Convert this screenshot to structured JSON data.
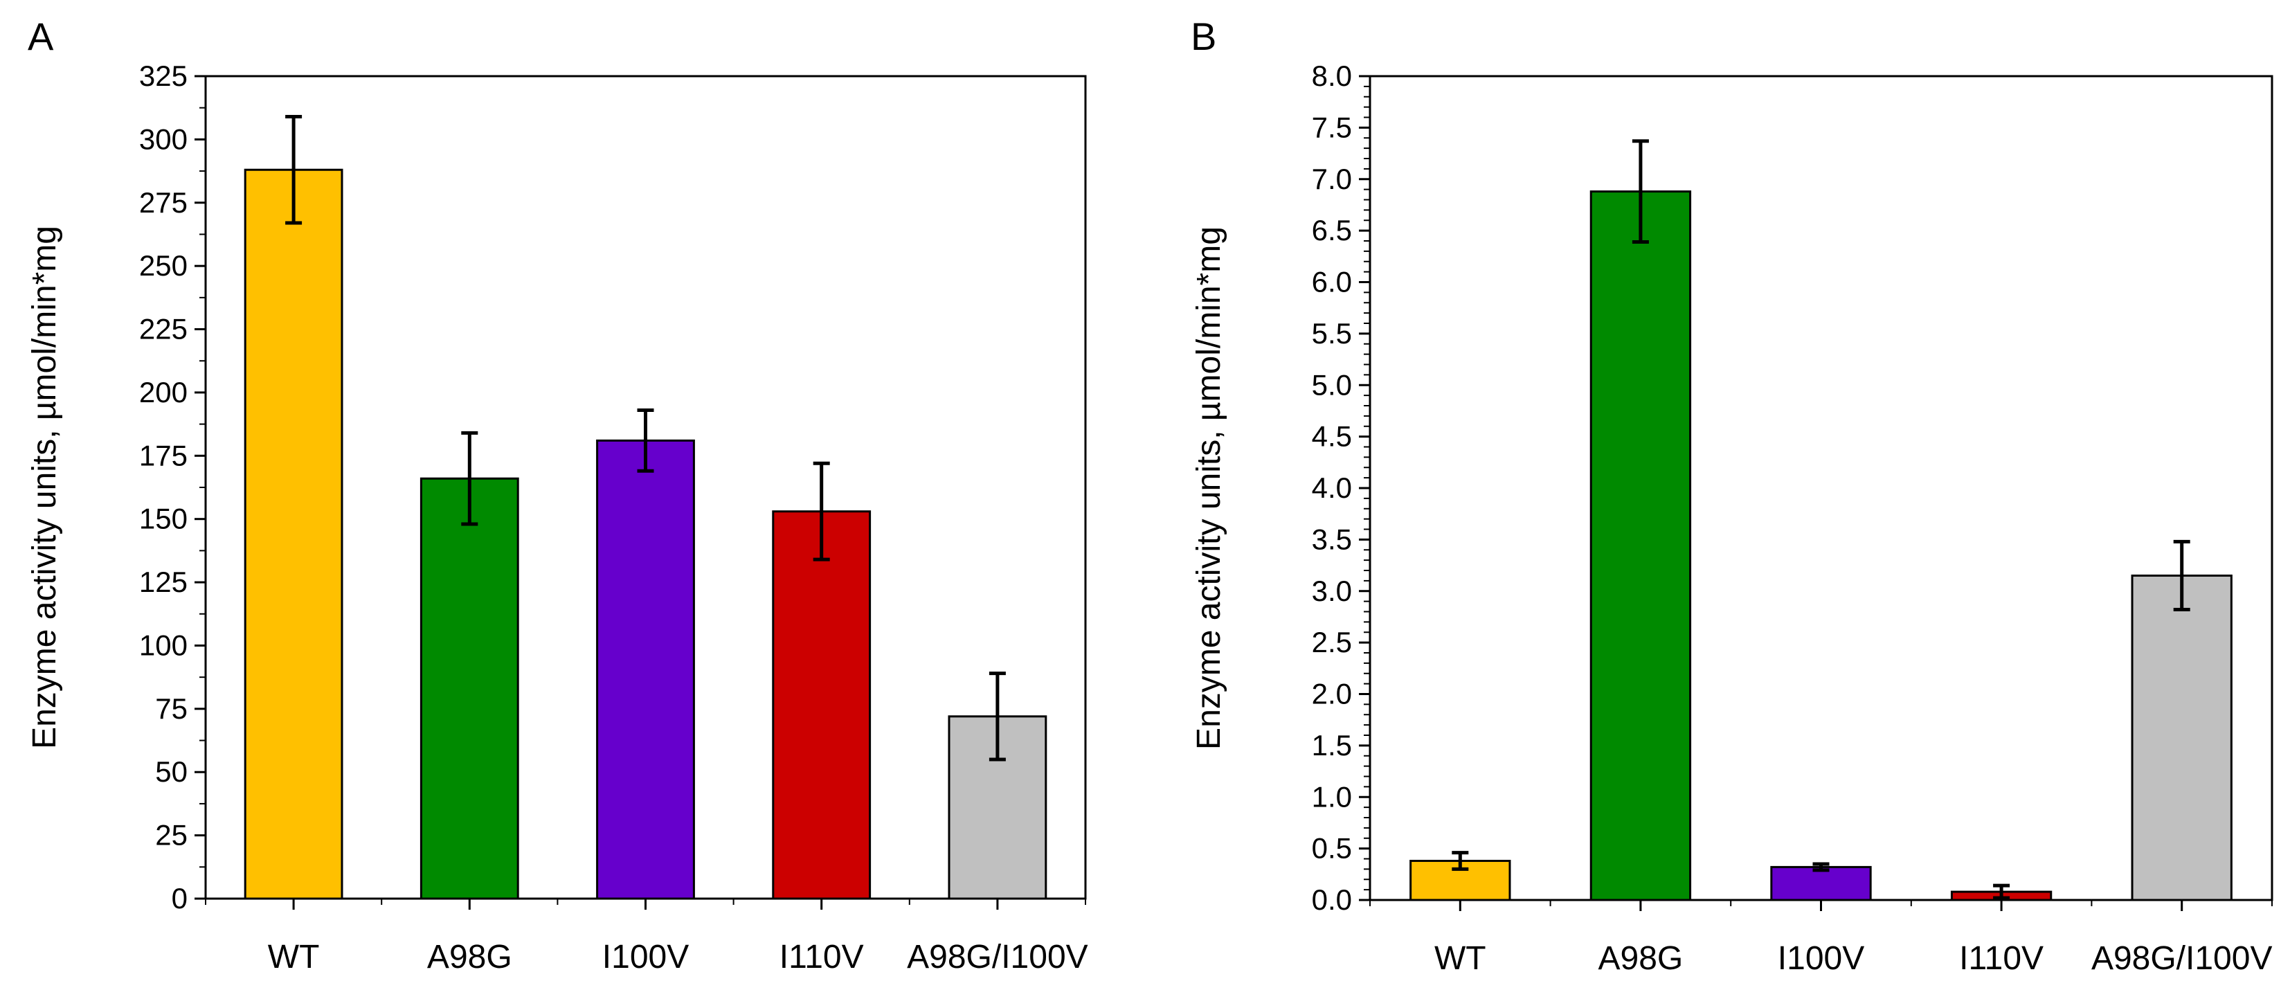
{
  "chart_data": [
    {
      "panel": "A",
      "type": "bar",
      "categories": [
        "WT",
        "A98G",
        "I100V",
        "I110V",
        "A98G/I100V"
      ],
      "values": [
        288,
        166,
        181,
        153,
        72
      ],
      "errors": [
        21,
        18,
        12,
        19,
        17
      ],
      "colors": [
        "#FFC000",
        "#008A00",
        "#6600CC",
        "#CC0000",
        "#C0C0C0"
      ],
      "ylabel": "Enzyme activity units, µmol/min*mg",
      "xlabel": "",
      "ylim": [
        0,
        325
      ],
      "yticks": [
        0,
        25,
        50,
        75,
        100,
        125,
        150,
        175,
        200,
        225,
        250,
        275,
        300,
        325
      ],
      "ytick_labels": [
        "0",
        "25",
        "50",
        "75",
        "100",
        "125",
        "150",
        "175",
        "200",
        "225",
        "250",
        "275",
        "300",
        "325"
      ],
      "grid": false
    },
    {
      "panel": "B",
      "type": "bar",
      "categories": [
        "WT",
        "A98G",
        "I100V",
        "I110V",
        "A98G/I100V"
      ],
      "values": [
        0.38,
        6.88,
        0.32,
        0.08,
        3.15
      ],
      "errors": [
        0.08,
        0.49,
        0.03,
        0.06,
        0.33
      ],
      "colors": [
        "#FFC000",
        "#008A00",
        "#6600CC",
        "#CC0000",
        "#C0C0C0"
      ],
      "ylabel": "Enzyme activity units, µmol/min*mg",
      "xlabel": "",
      "ylim": [
        0,
        8
      ],
      "yticks": [
        0,
        0.5,
        1,
        1.5,
        2,
        2.5,
        3,
        3.5,
        4,
        4.5,
        5,
        5.5,
        6,
        6.5,
        7,
        7.5,
        8
      ],
      "ytick_labels": [
        "0.0",
        "0.5",
        "1.0",
        "1.5",
        "2.0",
        "2.5",
        "3.0",
        "3.5",
        "4.0",
        "4.5",
        "5.0",
        "5.5",
        "6.0",
        "6.5",
        "7.0",
        "7.5",
        "8.0"
      ],
      "grid": false
    }
  ]
}
